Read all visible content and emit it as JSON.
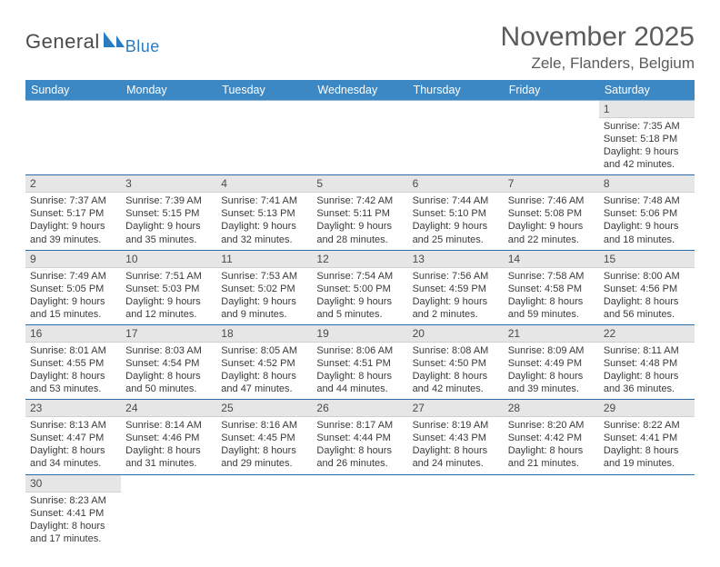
{
  "brand": {
    "part1": "General",
    "part2": "Blue",
    "color_general": "#4a4a4a",
    "color_blue": "#2a7bbf"
  },
  "title": "November 2025",
  "location": "Zele, Flanders, Belgium",
  "colors": {
    "header_bg": "#3b88c4",
    "header_text": "#ffffff",
    "row_divider": "#2a6aa8",
    "daynum_bg": "#e6e6e6",
    "text": "#3a3a3a"
  },
  "fonts": {
    "title_size": 30,
    "location_size": 17,
    "weekday_size": 12.5,
    "daynum_size": 12,
    "cell_size": 11
  },
  "weekdays": [
    "Sunday",
    "Monday",
    "Tuesday",
    "Wednesday",
    "Thursday",
    "Friday",
    "Saturday"
  ],
  "weeks": [
    [
      null,
      null,
      null,
      null,
      null,
      null,
      {
        "n": "1",
        "sr": "7:35 AM",
        "ss": "5:18 PM",
        "dlh": "9",
        "dlm": "42"
      }
    ],
    [
      {
        "n": "2",
        "sr": "7:37 AM",
        "ss": "5:17 PM",
        "dlh": "9",
        "dlm": "39"
      },
      {
        "n": "3",
        "sr": "7:39 AM",
        "ss": "5:15 PM",
        "dlh": "9",
        "dlm": "35"
      },
      {
        "n": "4",
        "sr": "7:41 AM",
        "ss": "5:13 PM",
        "dlh": "9",
        "dlm": "32"
      },
      {
        "n": "5",
        "sr": "7:42 AM",
        "ss": "5:11 PM",
        "dlh": "9",
        "dlm": "28"
      },
      {
        "n": "6",
        "sr": "7:44 AM",
        "ss": "5:10 PM",
        "dlh": "9",
        "dlm": "25"
      },
      {
        "n": "7",
        "sr": "7:46 AM",
        "ss": "5:08 PM",
        "dlh": "9",
        "dlm": "22"
      },
      {
        "n": "8",
        "sr": "7:48 AM",
        "ss": "5:06 PM",
        "dlh": "9",
        "dlm": "18"
      }
    ],
    [
      {
        "n": "9",
        "sr": "7:49 AM",
        "ss": "5:05 PM",
        "dlh": "9",
        "dlm": "15"
      },
      {
        "n": "10",
        "sr": "7:51 AM",
        "ss": "5:03 PM",
        "dlh": "9",
        "dlm": "12"
      },
      {
        "n": "11",
        "sr": "7:53 AM",
        "ss": "5:02 PM",
        "dlh": "9",
        "dlm": "9"
      },
      {
        "n": "12",
        "sr": "7:54 AM",
        "ss": "5:00 PM",
        "dlh": "9",
        "dlm": "5"
      },
      {
        "n": "13",
        "sr": "7:56 AM",
        "ss": "4:59 PM",
        "dlh": "9",
        "dlm": "2"
      },
      {
        "n": "14",
        "sr": "7:58 AM",
        "ss": "4:58 PM",
        "dlh": "8",
        "dlm": "59"
      },
      {
        "n": "15",
        "sr": "8:00 AM",
        "ss": "4:56 PM",
        "dlh": "8",
        "dlm": "56"
      }
    ],
    [
      {
        "n": "16",
        "sr": "8:01 AM",
        "ss": "4:55 PM",
        "dlh": "8",
        "dlm": "53"
      },
      {
        "n": "17",
        "sr": "8:03 AM",
        "ss": "4:54 PM",
        "dlh": "8",
        "dlm": "50"
      },
      {
        "n": "18",
        "sr": "8:05 AM",
        "ss": "4:52 PM",
        "dlh": "8",
        "dlm": "47"
      },
      {
        "n": "19",
        "sr": "8:06 AM",
        "ss": "4:51 PM",
        "dlh": "8",
        "dlm": "44"
      },
      {
        "n": "20",
        "sr": "8:08 AM",
        "ss": "4:50 PM",
        "dlh": "8",
        "dlm": "42"
      },
      {
        "n": "21",
        "sr": "8:09 AM",
        "ss": "4:49 PM",
        "dlh": "8",
        "dlm": "39"
      },
      {
        "n": "22",
        "sr": "8:11 AM",
        "ss": "4:48 PM",
        "dlh": "8",
        "dlm": "36"
      }
    ],
    [
      {
        "n": "23",
        "sr": "8:13 AM",
        "ss": "4:47 PM",
        "dlh": "8",
        "dlm": "34"
      },
      {
        "n": "24",
        "sr": "8:14 AM",
        "ss": "4:46 PM",
        "dlh": "8",
        "dlm": "31"
      },
      {
        "n": "25",
        "sr": "8:16 AM",
        "ss": "4:45 PM",
        "dlh": "8",
        "dlm": "29"
      },
      {
        "n": "26",
        "sr": "8:17 AM",
        "ss": "4:44 PM",
        "dlh": "8",
        "dlm": "26"
      },
      {
        "n": "27",
        "sr": "8:19 AM",
        "ss": "4:43 PM",
        "dlh": "8",
        "dlm": "24"
      },
      {
        "n": "28",
        "sr": "8:20 AM",
        "ss": "4:42 PM",
        "dlh": "8",
        "dlm": "21"
      },
      {
        "n": "29",
        "sr": "8:22 AM",
        "ss": "4:41 PM",
        "dlh": "8",
        "dlm": "19"
      }
    ],
    [
      {
        "n": "30",
        "sr": "8:23 AM",
        "ss": "4:41 PM",
        "dlh": "8",
        "dlm": "17"
      },
      null,
      null,
      null,
      null,
      null,
      null
    ]
  ]
}
